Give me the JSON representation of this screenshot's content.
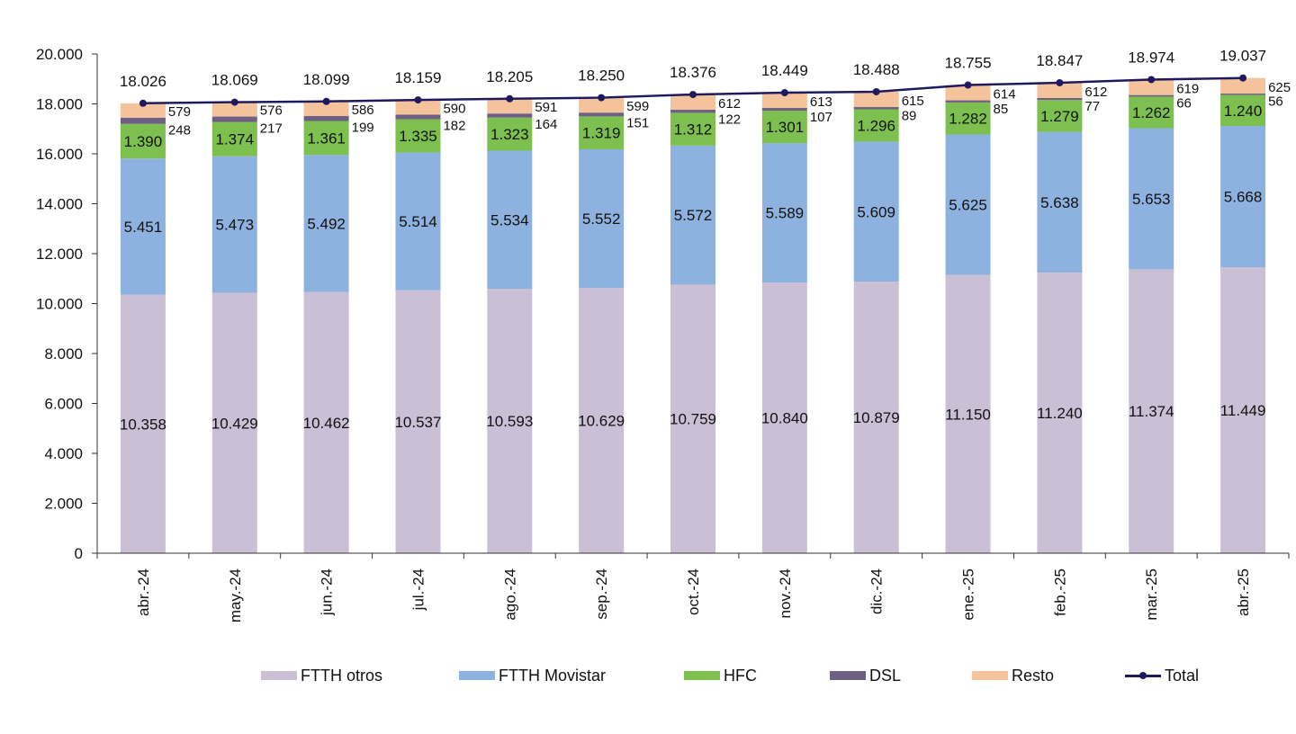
{
  "chart_data": {
    "type": "bar",
    "stacked": true,
    "categories": [
      "abr.-24",
      "may.-24",
      "jun.-24",
      "jul.-24",
      "ago.-24",
      "sep.-24",
      "oct.-24",
      "nov.-24",
      "dic.-24",
      "ene.-25",
      "feb.-25",
      "mar.-25",
      "abr.-25"
    ],
    "series": [
      {
        "name": "FTTH otros",
        "color": "#cbbfd6",
        "values": [
          10358,
          10429,
          10462,
          10537,
          10593,
          10629,
          10759,
          10840,
          10879,
          11150,
          11240,
          11374,
          11449
        ]
      },
      {
        "name": "FTTH Movistar",
        "color": "#8eb2df",
        "values": [
          5451,
          5473,
          5492,
          5514,
          5534,
          5552,
          5572,
          5589,
          5609,
          5625,
          5638,
          5653,
          5668
        ]
      },
      {
        "name": "HFC",
        "color": "#7dc04f",
        "values": [
          1390,
          1374,
          1361,
          1335,
          1323,
          1319,
          1312,
          1301,
          1296,
          1282,
          1279,
          1262,
          1240
        ]
      },
      {
        "name": "DSL",
        "color": "#6e5f84",
        "values": [
          248,
          217,
          199,
          182,
          164,
          151,
          122,
          107,
          89,
          85,
          77,
          66,
          56
        ]
      },
      {
        "name": "Resto",
        "color": "#f4c39c",
        "values": [
          579,
          576,
          586,
          590,
          591,
          599,
          612,
          613,
          615,
          614,
          612,
          619,
          625
        ]
      }
    ],
    "ftth_otros_labels": [
      "10.358",
      "10.429",
      "10.462",
      "10.537",
      "10.593",
      "10.629",
      "10.759",
      "10.840",
      "10.879",
      "11.150",
      "11.240",
      "11.374",
      "11.449"
    ],
    "ftth_movistar_labels": [
      "5.451",
      "5.473",
      "5.492",
      "5.514",
      "5.534",
      "5.552",
      "5.572",
      "5.589",
      "5.609",
      "5.625",
      "5.638",
      "5.653",
      "5.668"
    ],
    "hfc_labels": [
      "1.390",
      "1.374",
      "1.361",
      "1.335",
      "1.323",
      "1.319",
      "1.312",
      "1.301",
      "1.296",
      "1.282",
      "1.279",
      "1.262",
      "1.240"
    ],
    "dsl_labels": [
      "248",
      "217",
      "199",
      "182",
      "164",
      "151",
      "122",
      "107",
      "89",
      "85",
      "77",
      "66",
      "56"
    ],
    "resto_labels": [
      "579",
      "576",
      "586",
      "590",
      "591",
      "599",
      "612",
      "613",
      "615",
      "614",
      "612",
      "619",
      "625"
    ],
    "total": {
      "name": "Total",
      "color": "#1f1a5e",
      "values": [
        18026,
        18069,
        18099,
        18159,
        18205,
        18250,
        18376,
        18449,
        18488,
        18755,
        18847,
        18974,
        19037
      ],
      "labels": [
        "18.026",
        "18.069",
        "18.099",
        "18.159",
        "18.205",
        "18.250",
        "18.376",
        "18.449",
        "18.488",
        "18.755",
        "18.847",
        "18.974",
        "19.037"
      ]
    },
    "ylim": [
      0,
      20000
    ],
    "yticks": [
      "0",
      "2.000",
      "4.000",
      "6.000",
      "8.000",
      "10.000",
      "12.000",
      "14.000",
      "16.000",
      "18.000",
      "20.000"
    ],
    "grid": false,
    "legend_position": "bottom"
  },
  "legend": {
    "items": [
      {
        "label": "FTTH otros",
        "color": "#cbbfd6",
        "kind": "bar"
      },
      {
        "label": "FTTH Movistar",
        "color": "#8eb2df",
        "kind": "bar"
      },
      {
        "label": "HFC",
        "color": "#7dc04f",
        "kind": "bar"
      },
      {
        "label": "DSL",
        "color": "#6e5f84",
        "kind": "bar"
      },
      {
        "label": "Resto",
        "color": "#f4c39c",
        "kind": "bar"
      },
      {
        "label": "Total",
        "color": "#1f1a5e",
        "kind": "line"
      }
    ]
  }
}
